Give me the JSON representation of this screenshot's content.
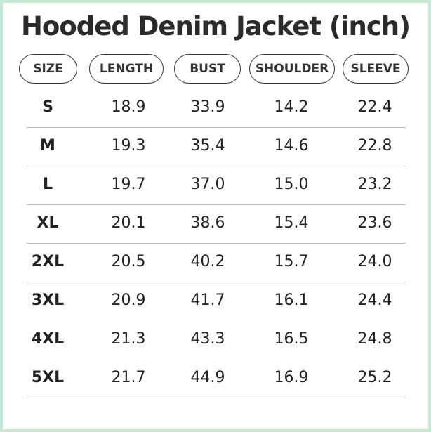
{
  "title": "Hooded Denim Jacket (inch)",
  "table": {
    "header": [
      "SIZE",
      "LENGTH",
      "BUST",
      "SHOULDER",
      "SLEEVE"
    ],
    "rows": [
      [
        "S",
        "18.9",
        "33.9",
        "14.2",
        "22.4"
      ],
      [
        "M",
        "19.3",
        "35.4",
        "14.6",
        "22.8"
      ],
      [
        "L",
        "19.7",
        "37.0",
        "15.0",
        "23.2"
      ],
      [
        "XL",
        "20.1",
        "38.6",
        "15.4",
        "23.6"
      ],
      [
        "2XL",
        "20.5",
        "40.2",
        "15.7",
        "24.0"
      ],
      [
        "3XL",
        "20.9",
        "41.7",
        "16.1",
        "24.4"
      ],
      [
        "4XL",
        "21.3",
        "43.3",
        "16.5",
        "24.8"
      ],
      [
        "5XL",
        "21.7",
        "44.9",
        "16.9",
        "25.2"
      ]
    ]
  }
}
